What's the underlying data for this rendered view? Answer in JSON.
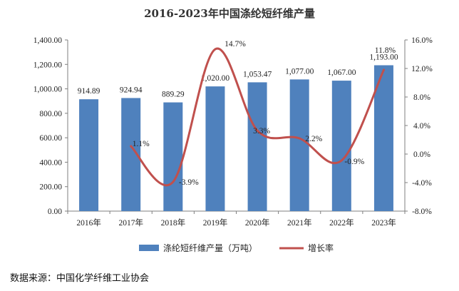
{
  "chart_data": {
    "type": "bar",
    "title": "2016-2023年中国涤纶短纤维产量",
    "categories": [
      "2016年",
      "2017年",
      "2018年",
      "2019年",
      "2020年",
      "2021年",
      "2022年",
      "2023年"
    ],
    "series": [
      {
        "name": "涤纶短纤维产量（万吨）",
        "type": "bar",
        "axis": "left",
        "color": "#4F81BD",
        "values": [
          914.89,
          924.94,
          889.29,
          1020.0,
          1053.47,
          1077.0,
          1067.0,
          1193.0
        ],
        "labels": [
          "914.89",
          "924.94",
          "889.29",
          "1,020.00",
          "1,053.47",
          "1,077.00",
          "1,067.00",
          "1,193.00"
        ]
      },
      {
        "name": "增长率",
        "type": "line",
        "axis": "right",
        "color": "#C0504D",
        "x": [
          "2017年",
          "2018年",
          "2019年",
          "2020年",
          "2021年",
          "2022年",
          "2023年"
        ],
        "values": [
          1.1,
          -3.9,
          14.7,
          3.3,
          2.2,
          -0.9,
          11.8
        ],
        "labels": [
          "1.1%",
          "-3.9%",
          "14.7%",
          "3.3%",
          "2.2%",
          "-0.9%",
          "11.8%"
        ]
      }
    ],
    "y_left": {
      "min": 0,
      "max": 1400,
      "ticks": [
        "0.00",
        "200.00",
        "400.00",
        "600.00",
        "800.00",
        "1,000.00",
        "1,200.00",
        "1,400.00"
      ]
    },
    "y_right": {
      "min": -8,
      "max": 16,
      "ticks": [
        "-8.0%",
        "-4.0%",
        "0.0%",
        "4.0%",
        "8.0%",
        "12.0%",
        "16.0%"
      ]
    },
    "grid": false,
    "legend": "bottom"
  },
  "source": "数据来源：中国化学纤维工业协会"
}
